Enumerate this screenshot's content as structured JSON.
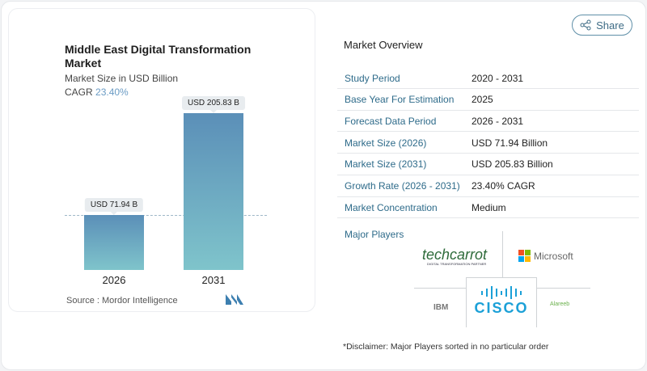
{
  "share_label": "Share",
  "chart_data": {
    "type": "bar",
    "title": "Middle East Digital Transformation Market",
    "subtitle": "Market Size in USD Billion",
    "cagr_label": "CAGR",
    "cagr_value": "23.40%",
    "categories": [
      "2026",
      "2031"
    ],
    "values": [
      71.94,
      205.83
    ],
    "data_labels": [
      "USD 71.94 B",
      "USD 205.83 B"
    ],
    "colors": [
      "#5b8fb8",
      "#7fc4cb"
    ]
  },
  "source": "Source :  Mordor Intelligence",
  "overview": {
    "title": "Market Overview",
    "rows": [
      {
        "k": "Study Period",
        "v": "2020 - 2031"
      },
      {
        "k": "Base Year For Estimation",
        "v": "2025"
      },
      {
        "k": "Forecast Data Period",
        "v": "2026 - 2031"
      },
      {
        "k": "Market Size (2026)",
        "v": "USD 71.94 Billion"
      },
      {
        "k": "Market Size (2031)",
        "v": "USD 205.83 Billion"
      },
      {
        "k": "Growth Rate (2026 - 2031)",
        "v": "23.40% CAGR"
      },
      {
        "k": "Market Concentration",
        "v": "Medium"
      }
    ]
  },
  "players": {
    "title": "Major Players",
    "logos": [
      "techcarrot",
      "Microsoft",
      "IBM",
      "CISCO",
      "Alareeb"
    ],
    "techcarrot_tag": "DIGITAL TRANSFORMATION PARTNER"
  },
  "disclaimer": "*Disclaimer: Major Players sorted in no particular order"
}
